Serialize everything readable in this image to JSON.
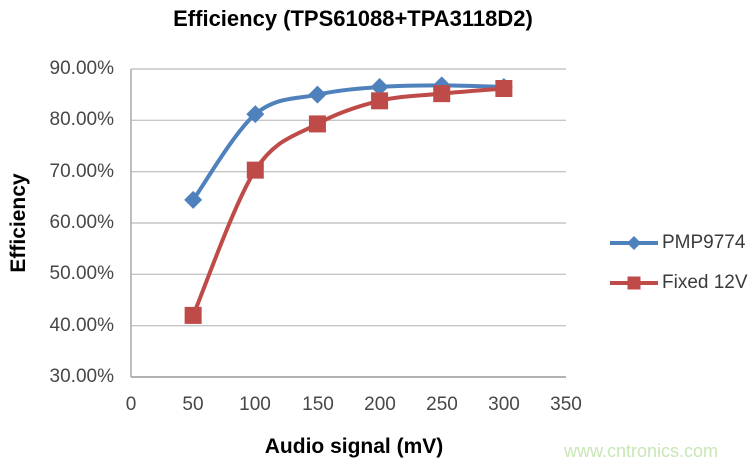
{
  "watermark": {
    "text": "www.cntronics.com",
    "color": "#c8e6b6"
  },
  "chart_data": {
    "type": "line",
    "title": "Efficiency (TPS61088+TPA3118D2)",
    "xlabel": "Audio signal (mV)",
    "ylabel": "Efficiency",
    "x": [
      50,
      100,
      150,
      200,
      250,
      300
    ],
    "series": [
      {
        "name": "PMP9774",
        "color": "#4F81BD",
        "marker": "diamond",
        "values": [
          64.5,
          81.2,
          85.0,
          86.5,
          86.8,
          86.5
        ]
      },
      {
        "name": "Fixed 12V",
        "color": "#BE4B48",
        "marker": "square",
        "values": [
          42.0,
          70.3,
          79.3,
          83.8,
          85.2,
          86.2
        ]
      }
    ],
    "xlim": [
      0,
      350
    ],
    "ylim": [
      30,
      90
    ],
    "x_ticks": [
      0,
      50,
      100,
      150,
      200,
      250,
      300,
      350
    ],
    "x_tick_labels": [
      "0",
      "50",
      "100",
      "150",
      "200",
      "250",
      "300",
      "350"
    ],
    "y_ticks": [
      90,
      80,
      70,
      60,
      50,
      40,
      30
    ],
    "y_tick_labels": [
      "90.00%",
      "80.00%",
      "70.00%",
      "60.00%",
      "50.00%",
      "40.00%",
      "30.00%"
    ],
    "grid": true,
    "legend_position": "right",
    "line_width": 4,
    "colors": {
      "gridline": "#c6c6c6",
      "axis": "#a3a3a3",
      "tick_text": "#474747",
      "title_text": "#000000"
    }
  }
}
